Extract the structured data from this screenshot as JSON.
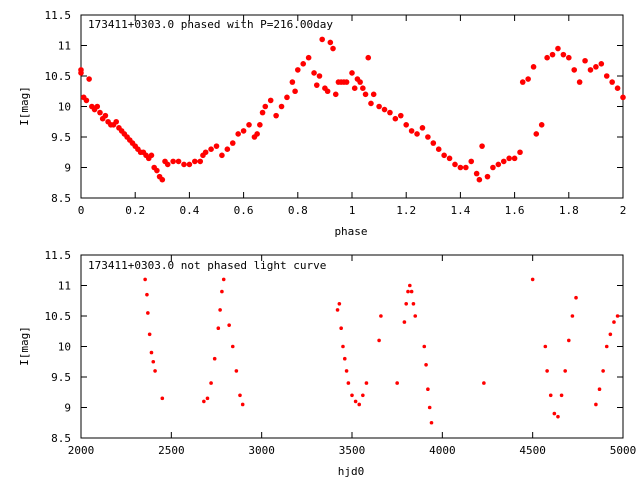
{
  "chart_data": [
    {
      "type": "scatter",
      "title": "173411+0303.0 phased with P=216.00day",
      "xlabel": "phase",
      "ylabel": "I[mag]",
      "xlim": [
        0,
        2
      ],
      "ylim": [
        11.5,
        8.5
      ],
      "y_inverted": true,
      "xticks": [
        "0",
        "0.2",
        "0.4",
        "0.6",
        "0.8",
        "1",
        "1.2",
        "1.4",
        "1.6",
        "1.8",
        "2"
      ],
      "yticks": [
        "8.5",
        "9",
        "9.5",
        "10",
        "10.5",
        "11",
        "11.5"
      ],
      "marker": "filled-circle",
      "color": "#ff0000",
      "points": [
        [
          0.0,
          10.55
        ],
        [
          0.0,
          10.6
        ],
        [
          0.01,
          10.15
        ],
        [
          0.02,
          10.1
        ],
        [
          0.03,
          10.45
        ],
        [
          0.04,
          10.0
        ],
        [
          0.05,
          9.95
        ],
        [
          0.06,
          10.0
        ],
        [
          0.07,
          9.9
        ],
        [
          0.08,
          9.8
        ],
        [
          0.09,
          9.85
        ],
        [
          0.1,
          9.75
        ],
        [
          0.11,
          9.7
        ],
        [
          0.12,
          9.7
        ],
        [
          0.13,
          9.75
        ],
        [
          0.14,
          9.65
        ],
        [
          0.15,
          9.6
        ],
        [
          0.16,
          9.55
        ],
        [
          0.17,
          9.5
        ],
        [
          0.18,
          9.45
        ],
        [
          0.19,
          9.4
        ],
        [
          0.2,
          9.35
        ],
        [
          0.21,
          9.3
        ],
        [
          0.22,
          9.25
        ],
        [
          0.23,
          9.25
        ],
        [
          0.24,
          9.2
        ],
        [
          0.25,
          9.15
        ],
        [
          0.26,
          9.2
        ],
        [
          0.27,
          9.0
        ],
        [
          0.28,
          8.95
        ],
        [
          0.29,
          8.85
        ],
        [
          0.3,
          8.8
        ],
        [
          0.31,
          9.1
        ],
        [
          0.32,
          9.05
        ],
        [
          0.34,
          9.1
        ],
        [
          0.36,
          9.1
        ],
        [
          0.38,
          9.05
        ],
        [
          0.4,
          9.05
        ],
        [
          0.42,
          9.1
        ],
        [
          0.44,
          9.1
        ],
        [
          0.45,
          9.2
        ],
        [
          0.46,
          9.25
        ],
        [
          0.48,
          9.3
        ],
        [
          0.5,
          9.35
        ],
        [
          0.52,
          9.2
        ],
        [
          0.54,
          9.3
        ],
        [
          0.56,
          9.4
        ],
        [
          0.58,
          9.55
        ],
        [
          0.6,
          9.6
        ],
        [
          0.62,
          9.7
        ],
        [
          0.64,
          9.5
        ],
        [
          0.65,
          9.55
        ],
        [
          0.66,
          9.7
        ],
        [
          0.67,
          9.9
        ],
        [
          0.68,
          10.0
        ],
        [
          0.7,
          10.1
        ],
        [
          0.72,
          9.85
        ],
        [
          0.74,
          10.0
        ],
        [
          0.76,
          10.15
        ],
        [
          0.78,
          10.4
        ],
        [
          0.79,
          10.25
        ],
        [
          0.8,
          10.6
        ],
        [
          0.82,
          10.7
        ],
        [
          0.84,
          10.8
        ],
        [
          0.86,
          10.55
        ],
        [
          0.87,
          10.35
        ],
        [
          0.88,
          10.5
        ],
        [
          0.89,
          11.1
        ],
        [
          0.9,
          10.3
        ],
        [
          0.91,
          10.25
        ],
        [
          0.92,
          11.05
        ],
        [
          0.93,
          10.95
        ],
        [
          0.94,
          10.2
        ],
        [
          0.95,
          10.4
        ],
        [
          0.96,
          10.4
        ],
        [
          0.97,
          10.4
        ],
        [
          0.98,
          10.4
        ],
        [
          1.0,
          10.55
        ],
        [
          1.01,
          10.3
        ],
        [
          1.02,
          10.45
        ],
        [
          1.03,
          10.4
        ],
        [
          1.04,
          10.3
        ],
        [
          1.05,
          10.2
        ],
        [
          1.06,
          10.8
        ],
        [
          1.07,
          10.05
        ],
        [
          1.08,
          10.2
        ],
        [
          1.1,
          10.0
        ],
        [
          1.12,
          9.95
        ],
        [
          1.14,
          9.9
        ],
        [
          1.16,
          9.8
        ],
        [
          1.18,
          9.85
        ],
        [
          1.2,
          9.7
        ],
        [
          1.22,
          9.6
        ],
        [
          1.24,
          9.55
        ],
        [
          1.26,
          9.65
        ],
        [
          1.28,
          9.5
        ],
        [
          1.3,
          9.4
        ],
        [
          1.32,
          9.3
        ],
        [
          1.34,
          9.2
        ],
        [
          1.36,
          9.15
        ],
        [
          1.38,
          9.05
        ],
        [
          1.4,
          9.0
        ],
        [
          1.42,
          9.0
        ],
        [
          1.44,
          9.1
        ],
        [
          1.46,
          8.9
        ],
        [
          1.47,
          8.8
        ],
        [
          1.48,
          9.35
        ],
        [
          1.5,
          8.85
        ],
        [
          1.52,
          9.0
        ],
        [
          1.54,
          9.05
        ],
        [
          1.56,
          9.1
        ],
        [
          1.58,
          9.15
        ],
        [
          1.6,
          9.15
        ],
        [
          1.62,
          9.25
        ],
        [
          1.63,
          10.4
        ],
        [
          1.65,
          10.45
        ],
        [
          1.67,
          10.65
        ],
        [
          1.68,
          9.55
        ],
        [
          1.7,
          9.7
        ],
        [
          1.72,
          10.8
        ],
        [
          1.74,
          10.85
        ],
        [
          1.76,
          10.95
        ],
        [
          1.78,
          10.85
        ],
        [
          1.8,
          10.8
        ],
        [
          1.82,
          10.6
        ],
        [
          1.84,
          10.4
        ],
        [
          1.86,
          10.75
        ],
        [
          1.88,
          10.6
        ],
        [
          1.9,
          10.65
        ],
        [
          1.92,
          10.7
        ],
        [
          1.94,
          10.5
        ],
        [
          1.96,
          10.4
        ],
        [
          1.98,
          10.3
        ],
        [
          2.0,
          10.15
        ]
      ]
    },
    {
      "type": "scatter",
      "title": "173411+0303.0 not phased light curve",
      "xlabel": "hjd0",
      "ylabel": "I[mag]",
      "xlim": [
        2000,
        5000
      ],
      "ylim": [
        11.5,
        8.5
      ],
      "y_inverted": true,
      "xticks": [
        "2000",
        "2500",
        "3000",
        "3500",
        "4000",
        "4500",
        "5000"
      ],
      "yticks": [
        "8.5",
        "9",
        "9.5",
        "10",
        "10.5",
        "11",
        "11.5"
      ],
      "marker": "filled-circle",
      "color": "#ff0000",
      "points": [
        [
          2355,
          11.1
        ],
        [
          2365,
          10.85
        ],
        [
          2370,
          10.55
        ],
        [
          2380,
          10.2
        ],
        [
          2390,
          9.9
        ],
        [
          2400,
          9.75
        ],
        [
          2410,
          9.6
        ],
        [
          2450,
          9.15
        ],
        [
          2680,
          9.1
        ],
        [
          2700,
          9.15
        ],
        [
          2720,
          9.4
        ],
        [
          2740,
          9.8
        ],
        [
          2760,
          10.3
        ],
        [
          2770,
          10.6
        ],
        [
          2780,
          10.9
        ],
        [
          2790,
          11.1
        ],
        [
          2820,
          10.35
        ],
        [
          2840,
          10.0
        ],
        [
          2860,
          9.6
        ],
        [
          2880,
          9.2
        ],
        [
          2895,
          9.05
        ],
        [
          3420,
          10.6
        ],
        [
          3430,
          10.7
        ],
        [
          3440,
          10.3
        ],
        [
          3450,
          10.0
        ],
        [
          3460,
          9.8
        ],
        [
          3470,
          9.6
        ],
        [
          3480,
          9.4
        ],
        [
          3500,
          9.2
        ],
        [
          3520,
          9.1
        ],
        [
          3540,
          9.05
        ],
        [
          3560,
          9.2
        ],
        [
          3580,
          9.4
        ],
        [
          3650,
          10.1
        ],
        [
          3660,
          10.5
        ],
        [
          3750,
          9.4
        ],
        [
          3790,
          10.4
        ],
        [
          3800,
          10.7
        ],
        [
          3810,
          10.9
        ],
        [
          3820,
          11.0
        ],
        [
          3830,
          10.9
        ],
        [
          3840,
          10.7
        ],
        [
          3850,
          10.5
        ],
        [
          3900,
          10.0
        ],
        [
          3910,
          9.7
        ],
        [
          3920,
          9.3
        ],
        [
          3930,
          9.0
        ],
        [
          3940,
          8.75
        ],
        [
          4230,
          9.4
        ],
        [
          4500,
          11.1
        ],
        [
          4570,
          10.0
        ],
        [
          4580,
          9.6
        ],
        [
          4600,
          9.2
        ],
        [
          4620,
          8.9
        ],
        [
          4640,
          8.85
        ],
        [
          4660,
          9.2
        ],
        [
          4680,
          9.6
        ],
        [
          4700,
          10.1
        ],
        [
          4720,
          10.5
        ],
        [
          4740,
          10.8
        ],
        [
          4850,
          9.05
        ],
        [
          4870,
          9.3
        ],
        [
          4890,
          9.6
        ],
        [
          4910,
          10.0
        ],
        [
          4930,
          10.2
        ],
        [
          4950,
          10.4
        ],
        [
          4970,
          10.5
        ]
      ]
    }
  ]
}
